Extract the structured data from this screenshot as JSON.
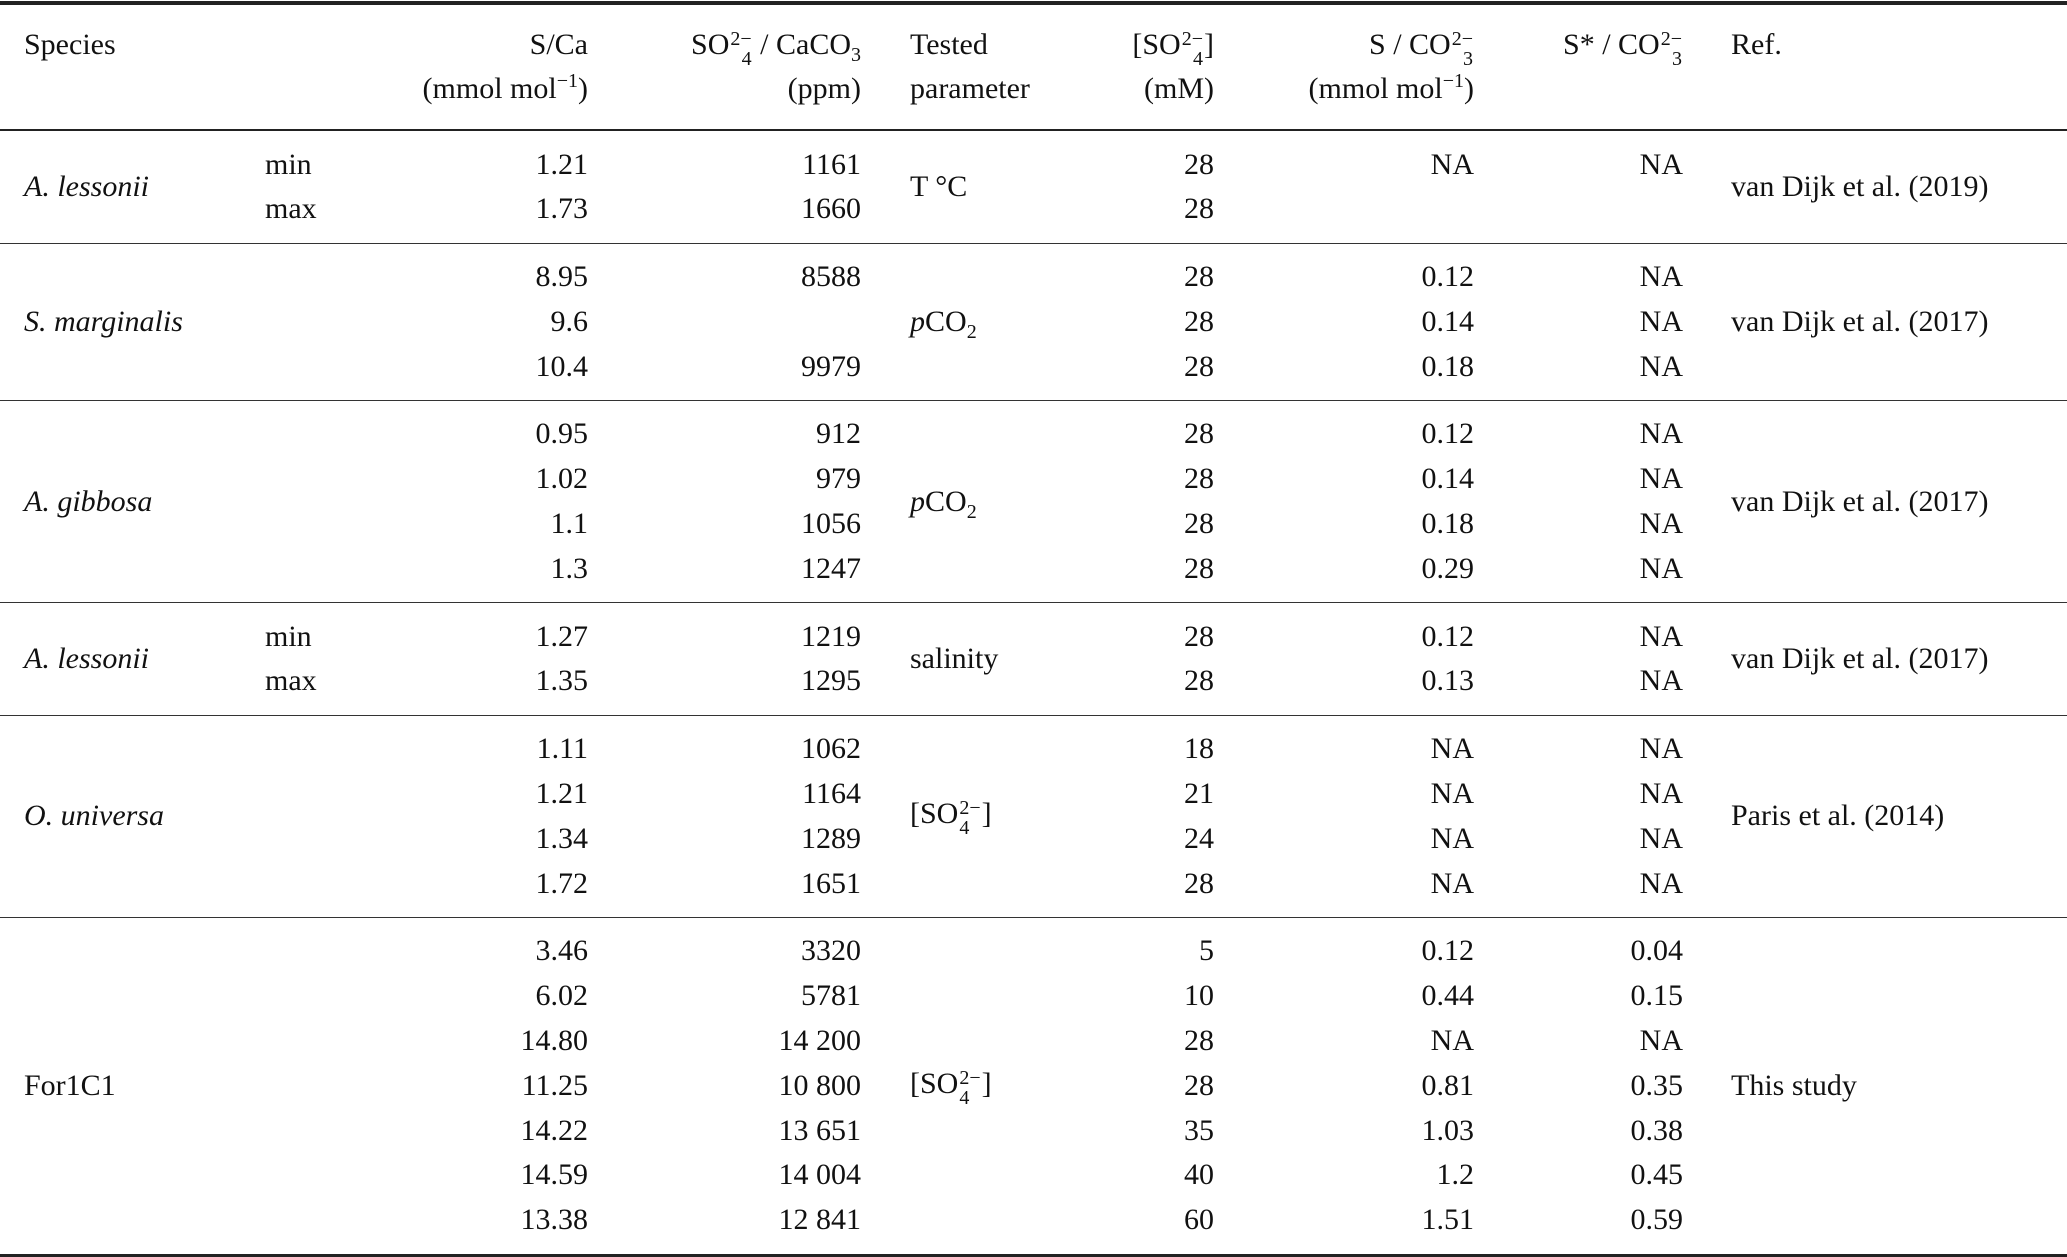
{
  "header": [
    [
      [
        [
          "Species",
          ""
        ]
      ],
      [
        [
          " ",
          ""
        ]
      ]
    ],
    [
      [
        [
          " ",
          ""
        ]
      ],
      [
        [
          " ",
          ""
        ]
      ]
    ],
    [
      [
        [
          "S/Ca",
          ""
        ]
      ],
      [
        [
          "(mmol mol",
          ""
        ],
        [
          "−1",
          "sup"
        ],
        [
          ")",
          ""
        ]
      ]
    ],
    [
      [
        [
          "SO",
          ""
        ],
        [
          "4|2−",
          "ss"
        ],
        [
          " / CaCO",
          ""
        ],
        [
          "3",
          "sub"
        ]
      ],
      [
        [
          "(ppm)",
          ""
        ]
      ]
    ],
    [
      [
        [
          "Tested",
          ""
        ]
      ],
      [
        [
          "parameter",
          ""
        ]
      ]
    ],
    [
      [
        [
          "[SO",
          ""
        ],
        [
          "4|2−",
          "ss"
        ],
        [
          "]",
          ""
        ]
      ],
      [
        [
          "(mM)",
          ""
        ]
      ]
    ],
    [
      [
        [
          "S / CO",
          ""
        ],
        [
          "3|2−",
          "ss"
        ]
      ],
      [
        [
          "(mmol mol",
          ""
        ],
        [
          "−1",
          "sup"
        ],
        [
          ")",
          ""
        ]
      ]
    ],
    [
      [
        [
          "S* / CO",
          ""
        ],
        [
          "3|2−",
          "ss"
        ]
      ],
      [
        [
          " ",
          ""
        ]
      ]
    ],
    [
      [
        [
          "Ref.",
          ""
        ]
      ],
      [
        [
          " ",
          ""
        ]
      ]
    ]
  ],
  "groups": [
    {
      "species": [
        [
          "A. lessonii",
          "i"
        ]
      ],
      "tested": [
        [
          "T °C",
          ""
        ]
      ],
      "ref": "van Dijk et al. (2019)",
      "rows": [
        [
          "min",
          "1.21",
          "1161",
          "28",
          "NA",
          "NA"
        ],
        [
          "max",
          "1.73",
          "1660",
          "28",
          "",
          ""
        ]
      ]
    },
    {
      "species": [
        [
          "S. marginalis",
          "i"
        ]
      ],
      "tested": [
        [
          "p",
          "i"
        ],
        [
          "CO",
          ""
        ],
        [
          "2",
          "sub"
        ]
      ],
      "ref": "van Dijk et al. (2017)",
      "rows": [
        [
          "",
          "8.95",
          "8588",
          "28",
          "0.12",
          "NA"
        ],
        [
          "",
          "9.6",
          "",
          "28",
          "0.14",
          "NA"
        ],
        [
          "",
          "10.4",
          "9979",
          "28",
          "0.18",
          "NA"
        ]
      ]
    },
    {
      "species": [
        [
          "A. gibbosa",
          "i"
        ]
      ],
      "tested": [
        [
          "p",
          "i"
        ],
        [
          "CO",
          ""
        ],
        [
          "2",
          "sub"
        ]
      ],
      "ref": "van Dijk et al. (2017)",
      "rows": [
        [
          "",
          "0.95",
          "912",
          "28",
          "0.12",
          "NA"
        ],
        [
          "",
          "1.02",
          "979",
          "28",
          "0.14",
          "NA"
        ],
        [
          "",
          "1.1",
          "1056",
          "28",
          "0.18",
          "NA"
        ],
        [
          "",
          "1.3",
          "1247",
          "28",
          "0.29",
          "NA"
        ]
      ]
    },
    {
      "species": [
        [
          "A. lessonii",
          "i"
        ]
      ],
      "tested": [
        [
          "salinity",
          ""
        ]
      ],
      "ref": "van Dijk et al. (2017)",
      "rows": [
        [
          "min",
          "1.27",
          "1219",
          "28",
          "0.12",
          "NA"
        ],
        [
          "max",
          "1.35",
          "1295",
          "28",
          "0.13",
          "NA"
        ]
      ]
    },
    {
      "species": [
        [
          "O. universa",
          "i"
        ]
      ],
      "tested": [
        [
          "[SO",
          ""
        ],
        [
          "4|2−",
          "ss"
        ],
        [
          "]",
          ""
        ]
      ],
      "ref": "Paris et al. (2014)",
      "rows": [
        [
          "",
          "1.11",
          "1062",
          "18",
          "NA",
          "NA"
        ],
        [
          "",
          "1.21",
          "1164",
          "21",
          "NA",
          "NA"
        ],
        [
          "",
          "1.34",
          "1289",
          "24",
          "NA",
          "NA"
        ],
        [
          "",
          "1.72",
          "1651",
          "28",
          "NA",
          "NA"
        ]
      ]
    },
    {
      "species": [
        [
          "For1C1",
          ""
        ]
      ],
      "tested": [
        [
          "[SO",
          ""
        ],
        [
          "4|2−",
          "ss"
        ],
        [
          "]",
          ""
        ]
      ],
      "ref": "This study",
      "rows": [
        [
          "",
          "3.46",
          "3320",
          "5",
          "0.12",
          "0.04"
        ],
        [
          "",
          "6.02",
          "5781",
          "10",
          "0.44",
          "0.15"
        ],
        [
          "",
          "14.80",
          "14 200",
          "28",
          "NA",
          "NA"
        ],
        [
          "",
          "11.25",
          "10 800",
          "28",
          "0.81",
          "0.35"
        ],
        [
          "",
          "14.22",
          "13 651",
          "35",
          "1.03",
          "0.38"
        ],
        [
          "",
          "14.59",
          "14 004",
          "40",
          "1.2",
          "0.45"
        ],
        [
          "",
          "13.38",
          "12 841",
          "60",
          "1.51",
          "0.59"
        ]
      ]
    }
  ]
}
